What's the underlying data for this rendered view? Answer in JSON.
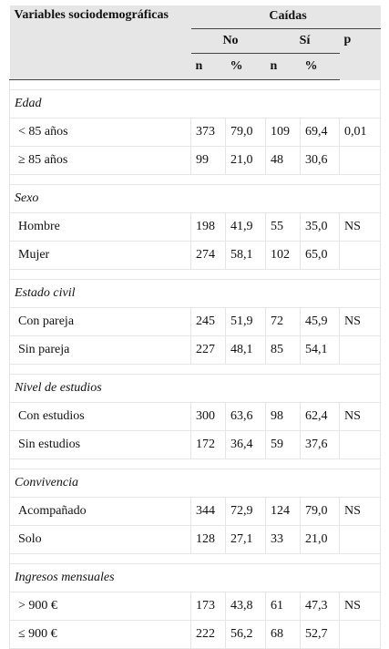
{
  "header": {
    "variables": "Variables sociodemográficas",
    "caidas": "Caídas",
    "no": "No",
    "si": "Sí",
    "p": "p",
    "n": "n",
    "pct": "%"
  },
  "groups": [
    {
      "title": "Edad",
      "rows": [
        {
          "label": "< 85 años",
          "no_n": "373",
          "no_pct": "79,0",
          "si_n": "109",
          "si_pct": "69,4",
          "p": "0,01"
        },
        {
          "label": "≥ 85 años",
          "no_n": "99",
          "no_pct": "21,0",
          "si_n": "48",
          "si_pct": "30,6",
          "p": ""
        }
      ]
    },
    {
      "title": "Sexo",
      "rows": [
        {
          "label": "Hombre",
          "no_n": "198",
          "no_pct": "41,9",
          "si_n": "55",
          "si_pct": "35,0",
          "p": "NS"
        },
        {
          "label": "Mujer",
          "no_n": "274",
          "no_pct": "58,1",
          "si_n": "102",
          "si_pct": "65,0",
          "p": ""
        }
      ]
    },
    {
      "title": "Estado civil",
      "rows": [
        {
          "label": "Con pareja",
          "no_n": "245",
          "no_pct": "51,9",
          "si_n": "72",
          "si_pct": "45,9",
          "p": "NS"
        },
        {
          "label": "Sin pareja",
          "no_n": "227",
          "no_pct": "48,1",
          "si_n": "85",
          "si_pct": "54,1",
          "p": ""
        }
      ]
    },
    {
      "title": "Nivel de estudios",
      "rows": [
        {
          "label": "Con estudios",
          "no_n": "300",
          "no_pct": "63,6",
          "si_n": "98",
          "si_pct": "62,4",
          "p": "NS"
        },
        {
          "label": "Sin estudios",
          "no_n": "172",
          "no_pct": "36,4",
          "si_n": "59",
          "si_pct": "37,6",
          "p": ""
        }
      ]
    },
    {
      "title": "Convivencia",
      "rows": [
        {
          "label": "Acompañado",
          "no_n": "344",
          "no_pct": "72,9",
          "si_n": "124",
          "si_pct": "79,0",
          "p": "NS"
        },
        {
          "label": "Solo",
          "no_n": "128",
          "no_pct": "27,1",
          "si_n": "33",
          "si_pct": "21,0",
          "p": ""
        }
      ]
    },
    {
      "title": "Ingresos mensuales",
      "rows": [
        {
          "label": "> 900 €",
          "no_n": "173",
          "no_pct": "43,8",
          "si_n": "61",
          "si_pct": "47,3",
          "p": "NS"
        },
        {
          "label": "≤ 900 €",
          "no_n": "222",
          "no_pct": "56,2",
          "si_n": "68",
          "si_pct": "52,7",
          "p": ""
        }
      ]
    }
  ]
}
